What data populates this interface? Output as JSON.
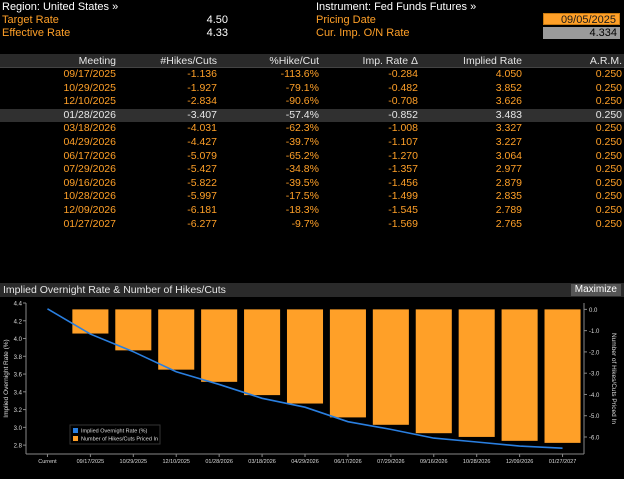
{
  "header": {
    "region_label": "Region: United States »",
    "target_rate_label": "Target Rate",
    "target_rate_value": "4.50",
    "effective_rate_label": "Effective Rate",
    "effective_rate_value": "4.33",
    "instrument_label": "Instrument: Fed Funds Futures »",
    "pricing_date_label": "Pricing Date",
    "pricing_date_value": "09/05/2025",
    "cur_imp_label": "Cur. Imp. O/N Rate",
    "cur_imp_value": "4.334"
  },
  "table": {
    "columns": [
      "Meeting",
      "#Hikes/Cuts",
      "%Hike/Cut",
      "Imp. Rate Δ",
      "Implied Rate",
      "A.R.M."
    ],
    "rows": [
      [
        "09/17/2025",
        "-1.136",
        "-113.6%",
        "-0.284",
        "4.050",
        "0.250"
      ],
      [
        "10/29/2025",
        "-1.927",
        "-79.1%",
        "-0.482",
        "3.852",
        "0.250"
      ],
      [
        "12/10/2025",
        "-2.834",
        "-90.6%",
        "-0.708",
        "3.626",
        "0.250"
      ],
      [
        "01/28/2026",
        "-3.407",
        "-57.4%",
        "-0.852",
        "3.483",
        "0.250"
      ],
      [
        "03/18/2026",
        "-4.031",
        "-62.3%",
        "-1.008",
        "3.327",
        "0.250"
      ],
      [
        "04/29/2026",
        "-4.427",
        "-39.7%",
        "-1.107",
        "3.227",
        "0.250"
      ],
      [
        "06/17/2026",
        "-5.079",
        "-65.2%",
        "-1.270",
        "3.064",
        "0.250"
      ],
      [
        "07/29/2026",
        "-5.427",
        "-34.8%",
        "-1.357",
        "2.977",
        "0.250"
      ],
      [
        "09/16/2026",
        "-5.822",
        "-39.5%",
        "-1.456",
        "2.879",
        "0.250"
      ],
      [
        "10/28/2026",
        "-5.997",
        "-17.5%",
        "-1.499",
        "2.835",
        "0.250"
      ],
      [
        "12/09/2026",
        "-6.181",
        "-18.3%",
        "-1.545",
        "2.789",
        "0.250"
      ],
      [
        "01/27/2027",
        "-6.277",
        "-9.7%",
        "-1.569",
        "2.765",
        "0.250"
      ]
    ],
    "selected_row": 3
  },
  "chart_panel": {
    "title": "Implied Overnight Rate & Number of Hikes/Cuts",
    "maximize_label": "Maximize"
  },
  "chart_data": {
    "type": "bar",
    "categories": [
      "Current",
      "09/17/2025",
      "10/29/2025",
      "12/10/2025",
      "01/28/2026",
      "03/18/2026",
      "04/29/2026",
      "06/17/2026",
      "07/29/2026",
      "09/16/2026",
      "10/28/2026",
      "12/09/2026",
      "01/27/2027"
    ],
    "series": [
      {
        "name": "Implied Overnight Rate (%)",
        "kind": "line",
        "axis": "left",
        "color": "#2a7fe0",
        "values": [
          4.334,
          4.05,
          3.852,
          3.626,
          3.483,
          3.327,
          3.227,
          3.064,
          2.977,
          2.879,
          2.835,
          2.789,
          2.765
        ]
      },
      {
        "name": "Number of Hikes/Cuts Priced In",
        "kind": "bar",
        "axis": "right",
        "color": "#ffa028",
        "values": [
          null,
          -1.136,
          -1.927,
          -2.834,
          -3.407,
          -4.031,
          -4.427,
          -5.079,
          -5.427,
          -5.822,
          -5.997,
          -6.181,
          -6.277
        ]
      }
    ],
    "ylabel": "Implied Overnight Rate (%)",
    "y2label": "Number of Hikes/Cuts Priced In",
    "ylim": [
      2.7,
      4.4
    ],
    "yticks": [
      "4.4",
      "4.2",
      "4.0",
      "3.8",
      "3.6",
      "3.4",
      "3.2",
      "3.0",
      "2.8"
    ],
    "y2lim": [
      -6.8,
      0.3
    ],
    "y2ticks": [
      "0.0",
      "-1.0",
      "-2.0",
      "-3.0",
      "-4.0",
      "-5.0",
      "-6.0"
    ],
    "legend_position": "bottom-left",
    "grid": false
  }
}
